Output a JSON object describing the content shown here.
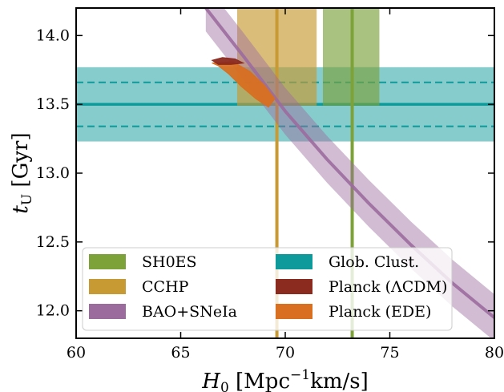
{
  "chart_data": {
    "type": "area",
    "xlabel": {
      "symbol": "H",
      "sub": "0",
      "unit_open": " [Mpc",
      "unit_sup": "−1",
      "unit_close": "km/s]"
    },
    "ylabel": {
      "symbol": "t",
      "sub": "U",
      "unit": " [Gyr]"
    },
    "xlim": [
      60,
      80
    ],
    "ylim": [
      11.8,
      14.2
    ],
    "x_ticks": [
      {
        "v": 60,
        "label": "60"
      },
      {
        "v": 65,
        "label": "65"
      },
      {
        "v": 70,
        "label": "70"
      },
      {
        "v": 75,
        "label": "75"
      },
      {
        "v": 80,
        "label": "80"
      }
    ],
    "y_ticks": [
      {
        "v": 12.0,
        "label": "12.0"
      },
      {
        "v": 12.5,
        "label": "12.5"
      },
      {
        "v": 13.0,
        "label": "13.0"
      },
      {
        "v": 13.5,
        "label": "13.5"
      },
      {
        "v": 14.0,
        "label": "14.0"
      }
    ],
    "grid": false,
    "legend_position": "lower-left",
    "series": [
      {
        "name": "SH0ES",
        "kind": "vband",
        "color": "#7da23a",
        "center": 73.2,
        "low": 71.8,
        "high": 74.5,
        "band_ymin": 13.49,
        "band_ymax": 14.2
      },
      {
        "name": "CCHP",
        "kind": "vband",
        "color": "#c79a33",
        "center": 69.6,
        "low": 67.7,
        "high": 71.5,
        "band_ymin": 13.49,
        "band_ymax": 14.2
      },
      {
        "name": "BAO+SNeIa",
        "kind": "diagonal_band",
        "color": "#9b6b9e",
        "center_line": [
          [
            66.2,
            14.2
          ],
          [
            68.0,
            13.85
          ],
          [
            70.0,
            13.45
          ],
          [
            72.0,
            13.1
          ],
          [
            74.0,
            12.78
          ],
          [
            76.0,
            12.48
          ],
          [
            78.0,
            12.2
          ],
          [
            80.0,
            11.95
          ]
        ],
        "half_width": 0.17
      },
      {
        "name": "Glob. Clust.",
        "kind": "hband",
        "color": "#0e9a9a",
        "center": 13.5,
        "low": 13.23,
        "high": 13.77,
        "dashed": [
          13.34,
          13.66
        ]
      },
      {
        "name": "Planck (ΛCDM)",
        "kind": "contour",
        "color": "#8b2a1f",
        "points": [
          [
            66.5,
            13.82
          ],
          [
            67.0,
            13.84
          ],
          [
            67.6,
            13.83
          ],
          [
            68.0,
            13.8
          ],
          [
            67.4,
            13.79
          ],
          [
            66.8,
            13.79
          ]
        ]
      },
      {
        "name": "Planck (EDE)",
        "kind": "contour",
        "color": "#d86f21",
        "points": [
          [
            66.5,
            13.8
          ],
          [
            67.5,
            13.81
          ],
          [
            68.3,
            13.74
          ],
          [
            69.0,
            13.64
          ],
          [
            69.5,
            13.54
          ],
          [
            69.2,
            13.48
          ],
          [
            68.6,
            13.54
          ],
          [
            67.9,
            13.63
          ],
          [
            67.3,
            13.72
          ],
          [
            66.8,
            13.78
          ]
        ]
      }
    ]
  }
}
